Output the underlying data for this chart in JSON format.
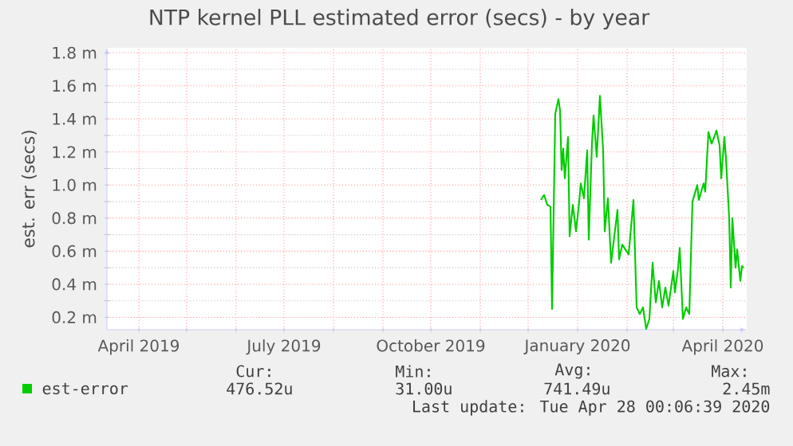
{
  "chart_data": {
    "type": "line",
    "title": "NTP kernel PLL estimated error (secs) - by year",
    "ylabel": "est. err (secs)",
    "x": [
      "2019-12-09",
      "2019-12-11",
      "2019-12-13",
      "2019-12-15",
      "2019-12-16",
      "2019-12-18",
      "2019-12-20",
      "2019-12-21",
      "2019-12-22",
      "2019-12-23",
      "2019-12-24",
      "2019-12-26",
      "2019-12-27",
      "2019-12-29",
      "2019-12-31",
      "2020-01-02",
      "2020-01-03",
      "2020-01-05",
      "2020-01-07",
      "2020-01-08",
      "2020-01-10",
      "2020-01-11",
      "2020-01-13",
      "2020-01-15",
      "2020-01-17",
      "2020-01-18",
      "2020-01-20",
      "2020-01-22",
      "2020-01-23",
      "2020-01-26",
      "2020-01-27",
      "2020-01-29",
      "2020-01-31",
      "2020-02-02",
      "2020-02-05",
      "2020-02-07",
      "2020-02-09",
      "2020-02-11",
      "2020-02-13",
      "2020-02-15",
      "2020-02-17",
      "2020-02-19",
      "2020-02-21",
      "2020-02-23",
      "2020-02-25",
      "2020-02-27",
      "2020-03-01",
      "2020-03-02",
      "2020-03-04",
      "2020-03-05",
      "2020-03-07",
      "2020-03-09",
      "2020-03-11",
      "2020-03-13",
      "2020-03-16",
      "2020-03-17",
      "2020-03-20",
      "2020-03-21",
      "2020-03-23",
      "2020-03-25",
      "2020-03-27",
      "2020-03-28",
      "2020-03-30",
      "2020-03-31",
      "2020-04-02",
      "2020-04-03",
      "2020-04-05",
      "2020-04-06",
      "2020-04-07",
      "2020-04-09",
      "2020-04-10",
      "2020-04-12",
      "2020-04-13",
      "2020-04-14"
    ],
    "series": [
      {
        "name": "est-error",
        "color": "#00cc00",
        "values": [
          0.91,
          0.94,
          0.88,
          0.87,
          0.25,
          1.43,
          1.52,
          1.45,
          1.09,
          1.22,
          1.04,
          1.29,
          0.69,
          0.88,
          0.72,
          0.9,
          1.01,
          0.92,
          1.21,
          0.67,
          1.25,
          1.42,
          1.17,
          1.54,
          1.21,
          0.72,
          0.92,
          0.53,
          0.61,
          0.85,
          0.55,
          0.64,
          0.61,
          0.58,
          0.91,
          0.26,
          0.22,
          0.26,
          0.13,
          0.19,
          0.53,
          0.29,
          0.42,
          0.26,
          0.38,
          0.27,
          0.48,
          0.35,
          0.5,
          0.62,
          0.19,
          0.26,
          0.22,
          0.9,
          1.0,
          0.91,
          1.01,
          0.96,
          1.32,
          1.25,
          1.3,
          1.33,
          1.24,
          1.04,
          1.29,
          1.16,
          0.8,
          0.38,
          0.8,
          0.5,
          0.61,
          0.42,
          0.51,
          0.5
        ]
      }
    ],
    "xlim": [
      "2019-03-12",
      "2020-04-16"
    ],
    "xticks": [
      {
        "value": "2019-04-01",
        "label": "April 2019"
      },
      {
        "value": "2019-05-01",
        "label": null
      },
      {
        "value": "2019-06-01",
        "label": null
      },
      {
        "value": "2019-07-01",
        "label": "July 2019"
      },
      {
        "value": "2019-08-01",
        "label": null
      },
      {
        "value": "2019-09-01",
        "label": null
      },
      {
        "value": "2019-10-01",
        "label": "October 2019"
      },
      {
        "value": "2019-11-01",
        "label": null
      },
      {
        "value": "2019-12-01",
        "label": null
      },
      {
        "value": "2020-01-01",
        "label": "January 2020"
      },
      {
        "value": "2020-02-01",
        "label": null
      },
      {
        "value": "2020-03-01",
        "label": null
      },
      {
        "value": "2020-04-01",
        "label": "April 2020"
      }
    ],
    "ylim": [
      0.125,
      1.83
    ],
    "yticks": [
      {
        "value": 0.2,
        "label": "0.2 m"
      },
      {
        "value": 0.4,
        "label": "0.4 m"
      },
      {
        "value": 0.6,
        "label": "0.6 m"
      },
      {
        "value": 0.8,
        "label": "0.8 m"
      },
      {
        "value": 1.0,
        "label": "1.0 m"
      },
      {
        "value": 1.2,
        "label": "1.2 m"
      },
      {
        "value": 1.4,
        "label": "1.4 m"
      },
      {
        "value": 1.6,
        "label": "1.6 m"
      },
      {
        "value": 1.8,
        "label": "1.8 m"
      }
    ],
    "grid": true,
    "legend": "bottom",
    "annotations": [
      "Cur:",
      "Min:",
      "Avg:",
      "Max:",
      "476.52u",
      "31.00u",
      "741.49u",
      "2.45m",
      "Last update: Tue Apr 28 00:06:39 2020"
    ]
  }
}
